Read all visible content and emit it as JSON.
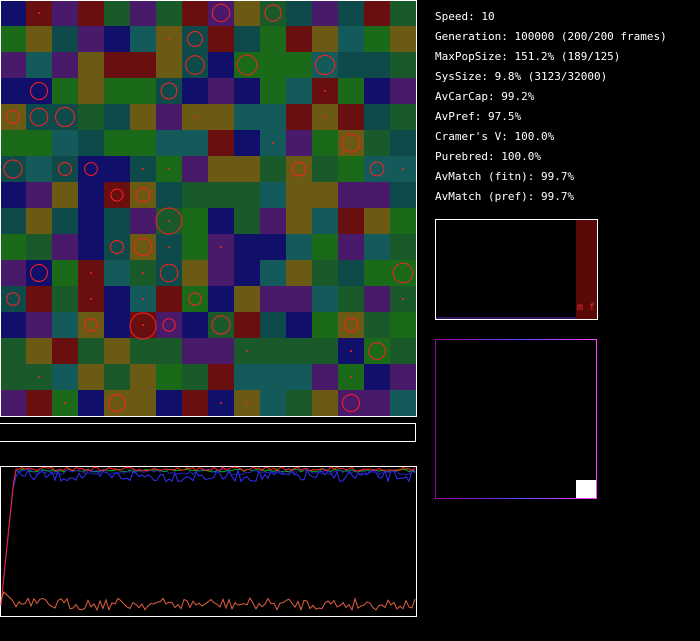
{
  "stats": [
    "Speed: 10",
    "Generation: 100000 (200/200 frames)",
    "MaxPopSize: 151.2% (189/125)",
    "SysSize: 9.8% (3123/32000)",
    "AvCarCap: 99.2%",
    "AvPref: 97.5%",
    "Cramer's V: 100.0%",
    "Purebred: 100.0%",
    "AvMatch (fitn): 99.7%",
    "AvMatch (pref): 99.7%"
  ],
  "histogram_label": "m f"
}
